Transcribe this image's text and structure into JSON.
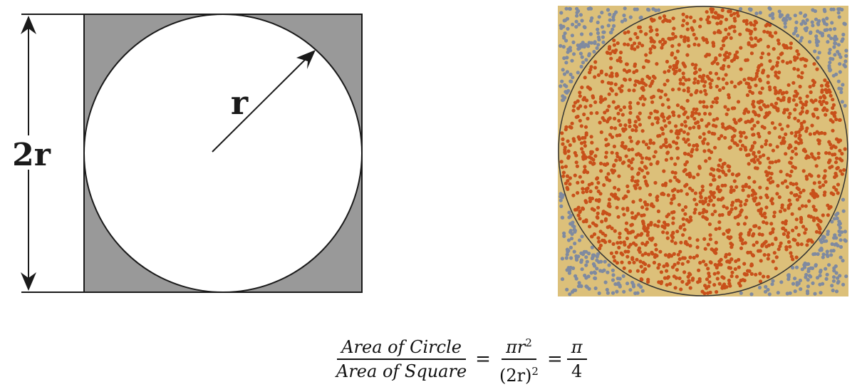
{
  "left": {
    "height_label": "2r",
    "radius_label": "r",
    "colors": {
      "shade": "#999999",
      "stroke": "#1a1a1a",
      "circle": "#ffffff"
    }
  },
  "right": {
    "colors": {
      "background": "#dcc07a",
      "inside_dots": "#c8501a",
      "outside_dots": "#7f8aa0",
      "circle_stroke": "#333333"
    },
    "inside_dot_count": 1900,
    "outside_dot_count": 520
  },
  "equation": {
    "left_numerator": "Area of Circle",
    "left_denominator": "Area of Square",
    "equals": "=",
    "mid_numerator_base": "πr",
    "mid_numerator_exp": "2",
    "mid_denominator_base": "(2r)",
    "mid_denominator_exp": "2",
    "right_numerator": "π",
    "right_denominator": "4"
  }
}
